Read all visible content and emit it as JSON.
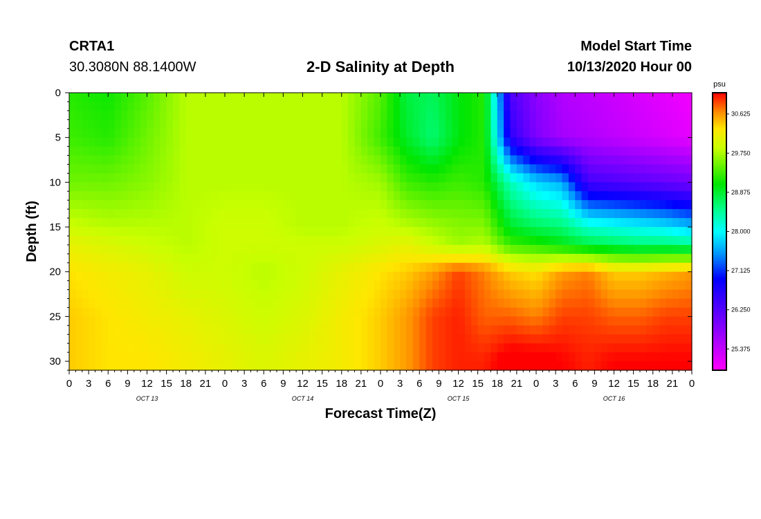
{
  "header": {
    "station_id": "CRTA1",
    "coordinates": "30.3080N 88.1400W",
    "title": "2-D Salinity at Depth",
    "start_label": "Model Start Time",
    "start_value": "10/13/2020 Hour 00"
  },
  "chart_data": {
    "type": "heatmap",
    "title": "2-D Salinity at Depth",
    "xlabel": "Forecast Time(Z)",
    "ylabel": "Depth (ft)",
    "x_ticks": [
      "0",
      "3",
      "6",
      "9",
      "12",
      "15",
      "18",
      "21",
      "0",
      "3",
      "6",
      "9",
      "12",
      "15",
      "18",
      "21",
      "0",
      "3",
      "6",
      "9",
      "12",
      "15",
      "18",
      "21",
      "0",
      "3",
      "6",
      "9",
      "12",
      "15",
      "18",
      "21",
      "0"
    ],
    "x_range_hours": [
      0,
      96
    ],
    "day_labels": [
      {
        "label": "OCT 13",
        "hour": 12
      },
      {
        "label": "OCT 14",
        "hour": 36
      },
      {
        "label": "OCT 15",
        "hour": 60
      },
      {
        "label": "OCT 16",
        "hour": 84
      }
    ],
    "y_ticks": [
      0,
      5,
      10,
      15,
      20,
      25,
      30
    ],
    "ylim": [
      0,
      31
    ],
    "y_inverted": true,
    "colorbar": {
      "unit": "psu",
      "tick_labels": [
        "30.625",
        "29.750",
        "28.875",
        "28.000",
        "27.125",
        "26.250",
        "25.375"
      ],
      "min": 24.9,
      "max": 31.1
    },
    "x_hours": [
      0,
      6,
      12,
      18,
      24,
      30,
      36,
      42,
      48,
      52,
      56,
      60,
      64,
      68,
      72,
      76,
      80,
      84,
      88,
      92,
      96
    ],
    "depths_ft": [
      0,
      5,
      10,
      15,
      17,
      20,
      25,
      30
    ],
    "values": [
      [
        29.2,
        29.1,
        29.4,
        29.8,
        29.8,
        29.8,
        29.8,
        29.8,
        29.4,
        28.8,
        28.7,
        29.0,
        29.2,
        26.3,
        25.8,
        25.5,
        25.4,
        25.3,
        25.2,
        25.1,
        25.0
      ],
      [
        29.3,
        29.2,
        29.5,
        29.8,
        29.8,
        29.8,
        29.8,
        29.8,
        29.3,
        28.9,
        28.6,
        29.0,
        29.2,
        26.6,
        25.9,
        25.6,
        25.5,
        25.4,
        25.3,
        25.2,
        25.1
      ],
      [
        29.5,
        29.5,
        29.6,
        29.8,
        29.8,
        29.8,
        29.8,
        29.8,
        29.7,
        29.3,
        29.2,
        29.3,
        29.2,
        28.3,
        27.8,
        27.6,
        26.4,
        26.3,
        26.2,
        26.1,
        26.0
      ],
      [
        29.9,
        29.8,
        29.8,
        29.8,
        29.9,
        29.9,
        29.8,
        29.8,
        29.9,
        29.8,
        29.7,
        29.6,
        29.6,
        28.9,
        28.7,
        28.6,
        28.2,
        28.1,
        28.0,
        27.9,
        27.7
      ],
      [
        30.1,
        30.0,
        29.9,
        29.8,
        29.9,
        29.9,
        29.9,
        29.9,
        30.0,
        30.1,
        29.9,
        29.7,
        29.8,
        29.3,
        29.2,
        29.0,
        28.8,
        28.7,
        28.6,
        28.6,
        28.5
      ],
      [
        30.3,
        30.2,
        30.1,
        29.9,
        29.9,
        29.8,
        29.9,
        30.1,
        30.3,
        30.4,
        30.6,
        30.9,
        30.7,
        30.4,
        30.3,
        30.6,
        30.7,
        30.4,
        30.4,
        30.5,
        30.6
      ],
      [
        30.4,
        30.3,
        30.2,
        30.1,
        30.0,
        29.9,
        30.0,
        30.2,
        30.4,
        30.6,
        30.9,
        31.0,
        30.8,
        30.8,
        30.7,
        30.9,
        30.9,
        30.8,
        30.8,
        30.9,
        30.9
      ],
      [
        30.4,
        30.3,
        30.3,
        30.2,
        30.1,
        30.0,
        30.1,
        30.2,
        30.4,
        30.6,
        30.9,
        31.0,
        31.0,
        31.2,
        31.2,
        31.1,
        31.0,
        31.1,
        31.1,
        31.1,
        31.1
      ]
    ]
  }
}
